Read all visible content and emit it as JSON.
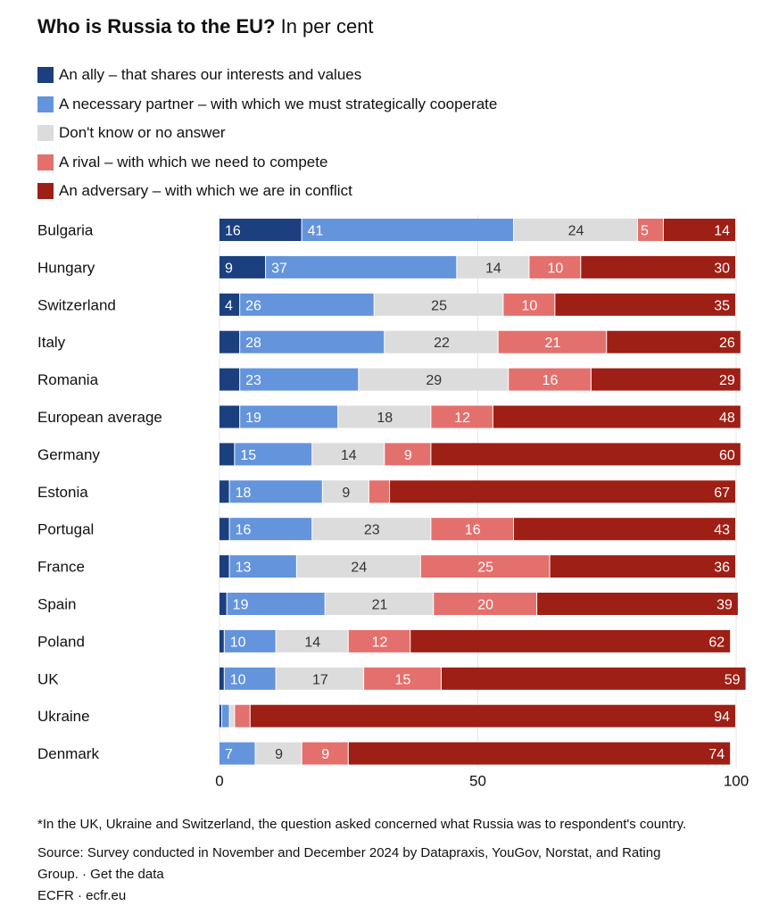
{
  "chart_data": {
    "type": "bar",
    "orientation": "horizontal",
    "stacked": true,
    "title": "Who is Russia to the EU?",
    "subtitle": "In per cent",
    "xlim": [
      0,
      100
    ],
    "xticks": [
      "0",
      "50",
      "100"
    ],
    "grid": true,
    "series": [
      {
        "name": "An ally – that shares our interests and values",
        "color": "#1b3f7f"
      },
      {
        "name": "A necessary partner – with which we must strategically cooperate",
        "color": "#6494dc"
      },
      {
        "name": "Don't know or no answer",
        "color": "#dcdcdc"
      },
      {
        "name": "A rival – with which we need to compete",
        "color": "#e4706d"
      },
      {
        "name": "An adversary – with which we are in conflict",
        "color": "#9e1f15"
      }
    ],
    "categories": [
      "Bulgaria",
      "Hungary",
      "Switzerland",
      "Italy",
      "Romania",
      "European average",
      "Germany",
      "Estonia",
      "Portugal",
      "France",
      "Spain",
      "Poland",
      "UK",
      "Ukraine",
      "Denmark"
    ],
    "values": [
      [
        16,
        41,
        24,
        5,
        14
      ],
      [
        9,
        37,
        14,
        10,
        30
      ],
      [
        4,
        26,
        25,
        10,
        35
      ],
      [
        4,
        28,
        22,
        21,
        26
      ],
      [
        4,
        23,
        29,
        16,
        29
      ],
      [
        4,
        19,
        18,
        12,
        48
      ],
      [
        3,
        15,
        14,
        9,
        60
      ],
      [
        2,
        18,
        9,
        4,
        67
      ],
      [
        2,
        16,
        23,
        16,
        43
      ],
      [
        2,
        13,
        24,
        25,
        36
      ],
      [
        1.5,
        19,
        21,
        20,
        39
      ],
      [
        1,
        10,
        14,
        12,
        62
      ],
      [
        1,
        10,
        17,
        15,
        59
      ],
      [
        0.5,
        1.5,
        1,
        3,
        94
      ],
      [
        0,
        7,
        9,
        9,
        74
      ]
    ],
    "labels": [
      [
        "16",
        "41",
        "24",
        "5",
        "14"
      ],
      [
        "9",
        "37",
        "14",
        "10",
        "30"
      ],
      [
        "4",
        "26",
        "25",
        "10",
        "35"
      ],
      [
        "",
        "28",
        "22",
        "21",
        "26"
      ],
      [
        "",
        "23",
        "29",
        "16",
        "29"
      ],
      [
        "",
        "19",
        "18",
        "12",
        "48"
      ],
      [
        "",
        "15",
        "14",
        "9",
        "60"
      ],
      [
        "",
        "18",
        "9",
        "",
        "67"
      ],
      [
        "",
        "16",
        "23",
        "16",
        "43"
      ],
      [
        "",
        "13",
        "24",
        "25",
        "36"
      ],
      [
        "",
        "19",
        "21",
        "20",
        "39"
      ],
      [
        "",
        "10",
        "14",
        "12",
        "62"
      ],
      [
        "",
        "10",
        "17",
        "15",
        "59"
      ],
      [
        "",
        "",
        "",
        "",
        "94"
      ],
      [
        "",
        "7",
        "9",
        "9",
        "74"
      ]
    ]
  },
  "notes": {
    "footnote": "*In the UK, Ukraine and Switzerland, the question asked concerned what Russia was to respondent's country.",
    "source_line1": "Source: Survey conducted in November and December 2024 by Datapraxis, YouGov, Norstat, and Rating",
    "source_line2": "Group. · Get the data",
    "credit": "ECFR · ecfr.eu"
  }
}
